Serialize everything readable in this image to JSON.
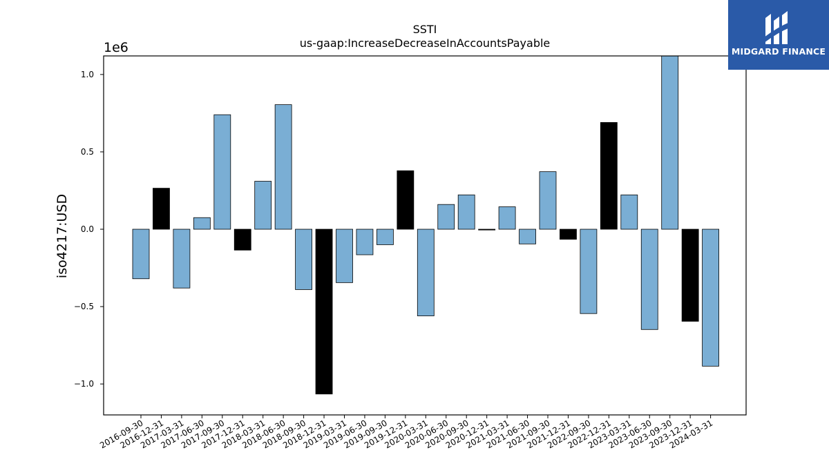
{
  "brand": {
    "name": "MIDGARD FINANCE",
    "color": "#2a5aa8"
  },
  "chart_data": {
    "type": "bar",
    "title": "SSTI",
    "subtitle": "us-gaap:IncreaseDecreaseInAccountsPayable",
    "ylabel": "iso4217:USD",
    "xlabel": "",
    "y_offset_label": "1e6",
    "ylim": [
      -1.2,
      1.12
    ],
    "yticks": [
      -1.0,
      -0.5,
      0.0,
      0.5,
      1.0
    ],
    "ytick_labels": [
      "−1.0",
      "−0.5",
      "0.0",
      "0.5",
      "1.0"
    ],
    "categories": [
      "2016-09-30",
      "2016-12-31",
      "2017-03-31",
      "2017-06-30",
      "2017-09-30",
      "2017-12-31",
      "2018-03-31",
      "2018-06-30",
      "2018-09-30",
      "2018-12-31",
      "2019-03-31",
      "2019-06-30",
      "2019-09-30",
      "2019-12-31",
      "2020-03-31",
      "2020-06-30",
      "2020-09-30",
      "2020-12-31",
      "2021-03-31",
      "2021-06-30",
      "2021-09-30",
      "2021-12-31",
      "2022-09-30",
      "2022-12-31",
      "2023-03-31",
      "2023-06-30",
      "2023-09-30",
      "2023-12-31",
      "2024-03-31"
    ],
    "values": [
      -0.32,
      0.265,
      -0.38,
      0.075,
      0.74,
      -0.135,
      0.31,
      0.805,
      -0.39,
      -1.065,
      -0.345,
      -0.165,
      -0.1,
      0.378,
      -0.56,
      0.16,
      0.222,
      -0.005,
      0.145,
      -0.095,
      0.372,
      -0.065,
      -0.545,
      0.69,
      0.222,
      -0.648,
      1.15,
      -0.595,
      -0.885
    ],
    "bar_colors": [
      "#7aaed4",
      "#000000",
      "#7aaed4",
      "#7aaed4",
      "#7aaed4",
      "#000000",
      "#7aaed4",
      "#7aaed4",
      "#7aaed4",
      "#000000",
      "#7aaed4",
      "#7aaed4",
      "#7aaed4",
      "#000000",
      "#7aaed4",
      "#7aaed4",
      "#7aaed4",
      "#000000",
      "#7aaed4",
      "#7aaed4",
      "#7aaed4",
      "#000000",
      "#7aaed4",
      "#000000",
      "#7aaed4",
      "#7aaed4",
      "#7aaed4",
      "#000000",
      "#7aaed4"
    ],
    "grid": false
  }
}
